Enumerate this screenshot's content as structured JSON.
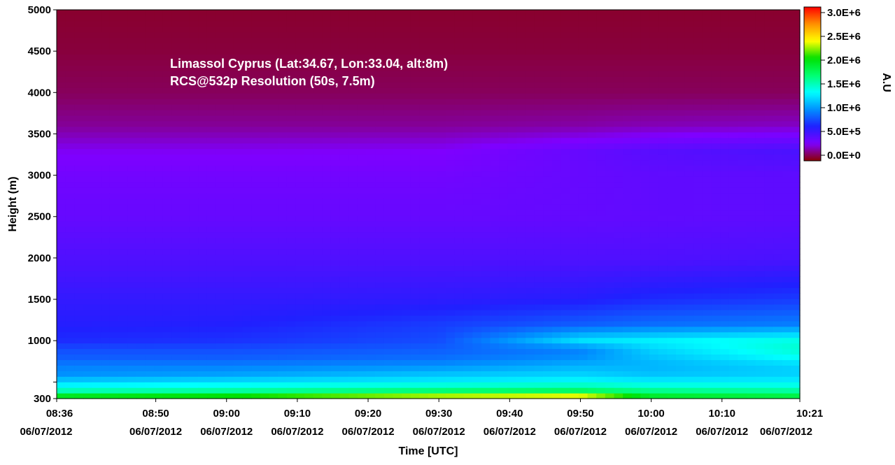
{
  "chart_data": {
    "type": "heatmap",
    "title_lines": [
      "Limassol Cyprus (Lat:34.67, Lon:33.04, alt:8m)",
      "RCS@532p Resolution (50s, 7.5m)"
    ],
    "xlabel": "Time [UTC]",
    "ylabel": "Height (m)",
    "colorbar_label": "A.U",
    "x_range": [
      "06/07/2012 08:36",
      "06/07/2012 10:21"
    ],
    "ylim": [
      300,
      5000
    ],
    "zlim": [
      0,
      3000000
    ],
    "x_ticks": [
      {
        "time": "08:36",
        "date": "06/07/2012",
        "minutes": 0
      },
      {
        "time": "08:50",
        "date": "06/07/2012",
        "minutes": 14
      },
      {
        "time": "09:00",
        "date": "06/07/2012",
        "minutes": 24
      },
      {
        "time": "09:10",
        "date": "06/07/2012",
        "minutes": 34
      },
      {
        "time": "09:20",
        "date": "06/07/2012",
        "minutes": 44
      },
      {
        "time": "09:30",
        "date": "06/07/2012",
        "minutes": 54
      },
      {
        "time": "09:40",
        "date": "06/07/2012",
        "minutes": 64
      },
      {
        "time": "09:50",
        "date": "06/07/2012",
        "minutes": 74
      },
      {
        "time": "10:00",
        "date": "06/07/2012",
        "minutes": 84
      },
      {
        "time": "10:10",
        "date": "06/07/2012",
        "minutes": 94
      },
      {
        "time": "10:21",
        "date": "06/07/2012",
        "minutes": 105
      }
    ],
    "y_ticks": [
      {
        "label": "5000",
        "value": 5000
      },
      {
        "label": "4500",
        "value": 4500
      },
      {
        "label": "4000",
        "value": 4000
      },
      {
        "label": "3500",
        "value": 3500
      },
      {
        "label": "3000",
        "value": 3000
      },
      {
        "label": "2500",
        "value": 2500
      },
      {
        "label": "2000",
        "value": 2000
      },
      {
        "label": "1500",
        "value": 1500
      },
      {
        "label": "1000",
        "value": 1000
      },
      {
        "label": "",
        "value": 500
      },
      {
        "label": "300",
        "value": 300
      }
    ],
    "colorbar_ticks": [
      {
        "label": "3.0E+6",
        "value": 3000000
      },
      {
        "label": "2.5E+6",
        "value": 2500000
      },
      {
        "label": "2.0E+6",
        "value": 2000000
      },
      {
        "label": "1.5E+6",
        "value": 1500000
      },
      {
        "label": "1.0E+6",
        "value": 1000000
      },
      {
        "label": "5.0E+5",
        "value": 500000
      },
      {
        "label": "0.0E+0",
        "value": 0
      }
    ],
    "colormap": [
      "#8b0000",
      "#7f00ff",
      "#2020ff",
      "#0090ff",
      "#00ffff",
      "#00ff70",
      "#00e000",
      "#ffff00",
      "#ff9000",
      "#ff0000"
    ],
    "profile_heights_m": [
      300,
      400,
      500,
      600,
      700,
      800,
      900,
      1000,
      1200,
      1500,
      2000,
      2500,
      3000,
      3300,
      3600,
      4000,
      4500,
      5000
    ],
    "profile_times_min": [
      0,
      24,
      54,
      74,
      84,
      105
    ],
    "profiles_rcs": [
      [
        2100000,
        1500000,
        1200000,
        1000000,
        950000,
        850000,
        800000,
        700000,
        650000,
        600000,
        500000,
        420000,
        380000,
        320000,
        200000,
        120000,
        80000,
        60000
      ],
      [
        2200000,
        1550000,
        1250000,
        1050000,
        950000,
        850000,
        800000,
        720000,
        660000,
        600000,
        500000,
        420000,
        380000,
        320000,
        200000,
        120000,
        80000,
        60000
      ],
      [
        2500000,
        1650000,
        1300000,
        1150000,
        1000000,
        900000,
        850000,
        800000,
        750000,
        620000,
        500000,
        420000,
        380000,
        330000,
        200000,
        120000,
        80000,
        60000
      ],
      [
        2600000,
        1700000,
        1350000,
        1200000,
        1100000,
        1000000,
        950000,
        1250000,
        850000,
        650000,
        500000,
        430000,
        420000,
        420000,
        220000,
        120000,
        80000,
        60000
      ],
      [
        2000000,
        1600000,
        1300000,
        1150000,
        1100000,
        1150000,
        1200000,
        1300000,
        900000,
        700000,
        500000,
        440000,
        440000,
        470000,
        240000,
        120000,
        80000,
        60000
      ],
      [
        1900000,
        1550000,
        1300000,
        1200000,
        1200000,
        1350000,
        1450000,
        1400000,
        950000,
        750000,
        520000,
        450000,
        450000,
        520000,
        260000,
        120000,
        80000,
        60000
      ]
    ]
  }
}
